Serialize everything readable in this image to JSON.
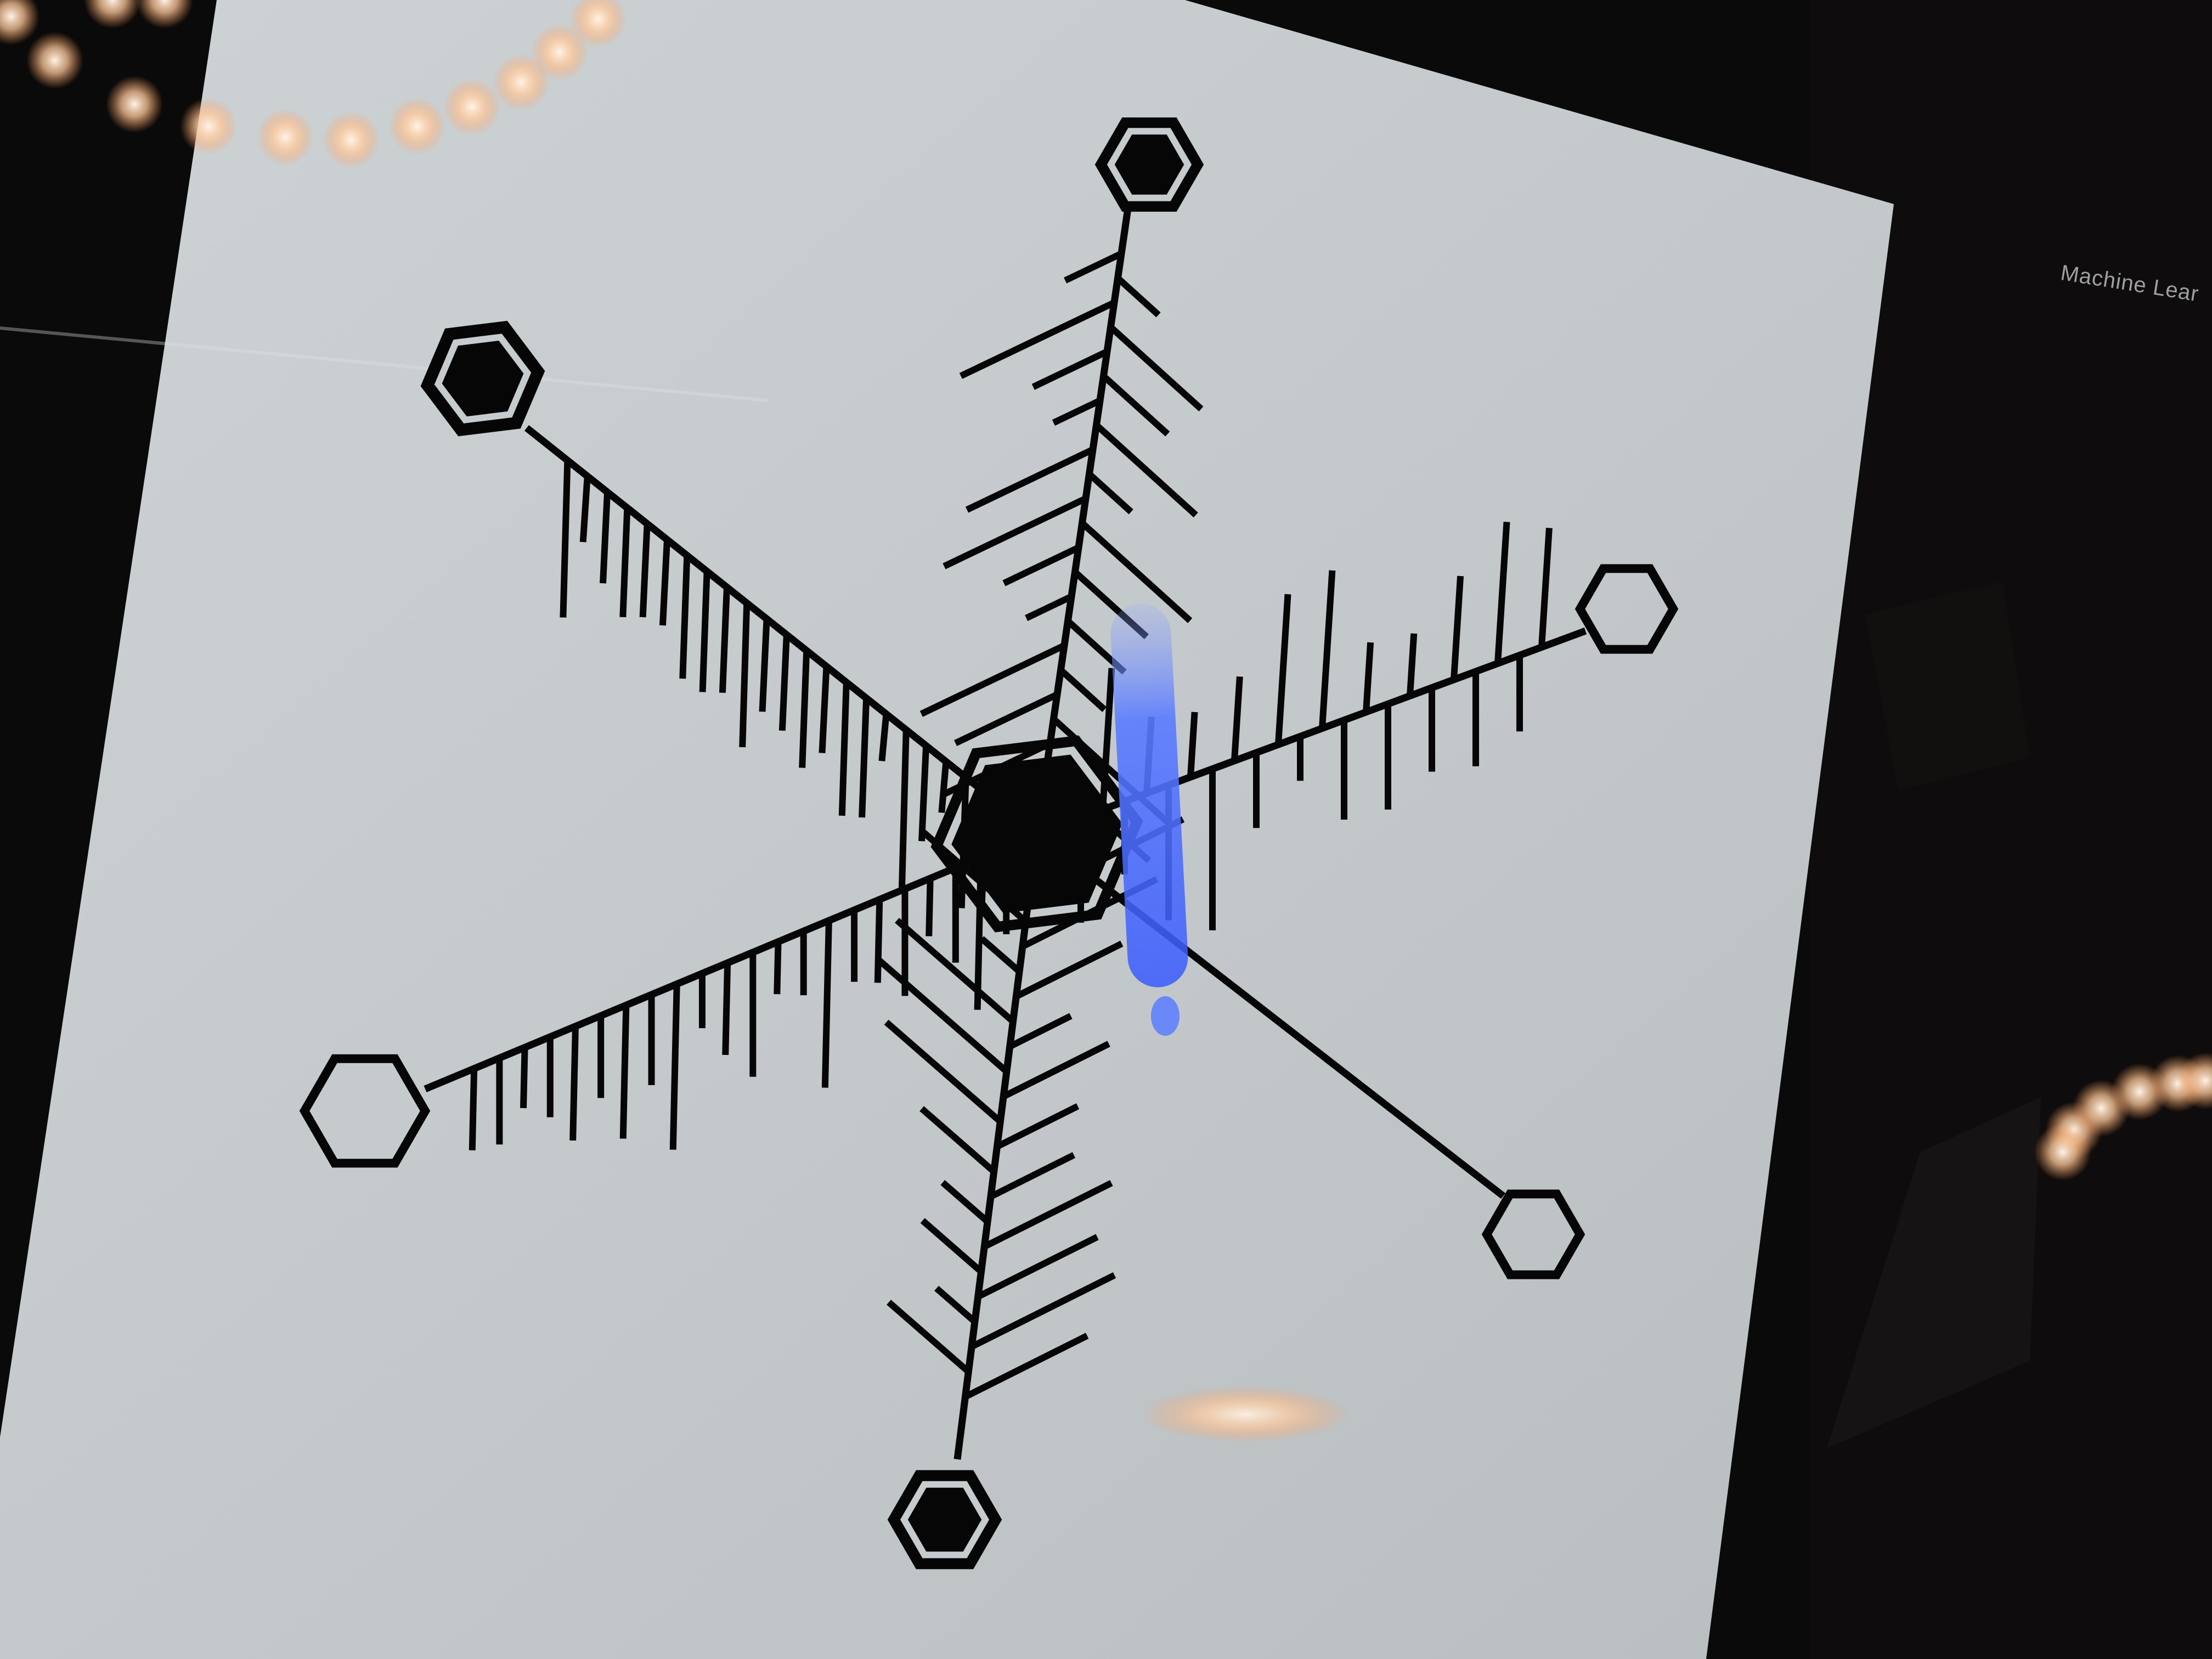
{
  "scene": {
    "background_color": "#0b0a0a",
    "sheet_color": "#c6cbce",
    "ink_color": "#060606",
    "light_color": "#ffd9b8",
    "reflection_color": "#5a7cff"
  },
  "caption": {
    "text": "Machine Lear"
  },
  "snowflake": {
    "arms": [
      {
        "name": "arm-top",
        "end_marker": "filled-hexagon"
      },
      {
        "name": "arm-upper-left",
        "end_marker": "filled-hexagon"
      },
      {
        "name": "arm-upper-right",
        "end_marker": "hollow-hexagon"
      },
      {
        "name": "arm-lower-left",
        "end_marker": "hollow-hexagon"
      },
      {
        "name": "arm-lower-right",
        "end_marker": "hollow-hexagon"
      },
      {
        "name": "arm-bottom",
        "end_marker": "filled-hexagon"
      }
    ]
  }
}
